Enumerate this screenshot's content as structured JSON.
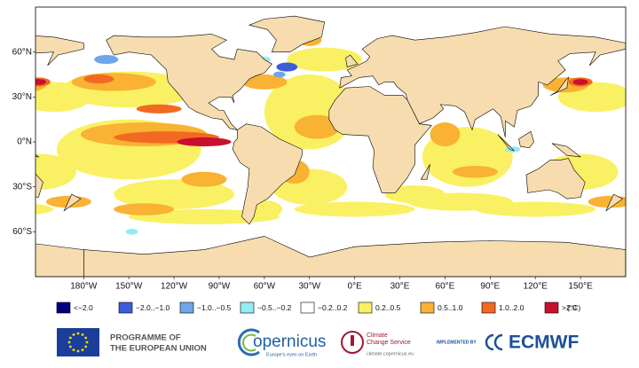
{
  "map": {
    "lonlim": [
      -212,
      180
    ],
    "latlim": [
      -90,
      90
    ],
    "xticks": [
      {
        "value": -180,
        "label": "180°W"
      },
      {
        "value": -150,
        "label": "150°W"
      },
      {
        "value": -120,
        "label": "120°W"
      },
      {
        "value": -90,
        "label": "90°W"
      },
      {
        "value": -60,
        "label": "60°W"
      },
      {
        "value": -30,
        "label": "30°W"
      },
      {
        "value": 0,
        "label": "0°E"
      },
      {
        "value": 30,
        "label": "30°E"
      },
      {
        "value": 60,
        "label": "60°E"
      },
      {
        "value": 90,
        "label": "90°E"
      },
      {
        "value": 120,
        "label": "120°E"
      },
      {
        "value": 150,
        "label": "150°E"
      }
    ],
    "yticks": [
      {
        "value": 60,
        "label": "60°N"
      },
      {
        "value": 30,
        "label": "30°N"
      },
      {
        "value": 0,
        "label": "0°N"
      },
      {
        "value": -30,
        "label": "30°S"
      },
      {
        "value": -60,
        "label": "60°S"
      }
    ]
  },
  "legend": {
    "items": [
      {
        "label": "<−2.0",
        "color": "#00007f"
      },
      {
        "label": "−2.0..−1.0",
        "color": "#3a5ed8"
      },
      {
        "label": "−1.0..−0.5",
        "color": "#6fa6e8"
      },
      {
        "label": "−0.5..−0.2",
        "color": "#94ecf2"
      },
      {
        "label": "−0.2..0.2",
        "color": "#ffffff"
      },
      {
        "label": "0.2..0.5",
        "color": "#f9f163"
      },
      {
        "label": "0.5..1.0",
        "color": "#f9b233"
      },
      {
        "label": "1.0..2.0",
        "color": "#f26a21"
      },
      {
        "label": ">2.0",
        "color": "#c8102e"
      }
    ],
    "unit": "(°C)"
  },
  "footer": {
    "eu_text": [
      "PROGRAMME OF",
      "THE EUROPEAN UNION"
    ],
    "copernicus": {
      "name": "opernicus",
      "tagline": "Europe's eyes on Earth"
    },
    "c3s": {
      "name": [
        "Climate",
        "Change Service"
      ],
      "url": "climate.copernicus.eu"
    },
    "ecmwf": {
      "implemented_by": "IMPLEMENTED BY",
      "name": "ECMWF"
    }
  }
}
